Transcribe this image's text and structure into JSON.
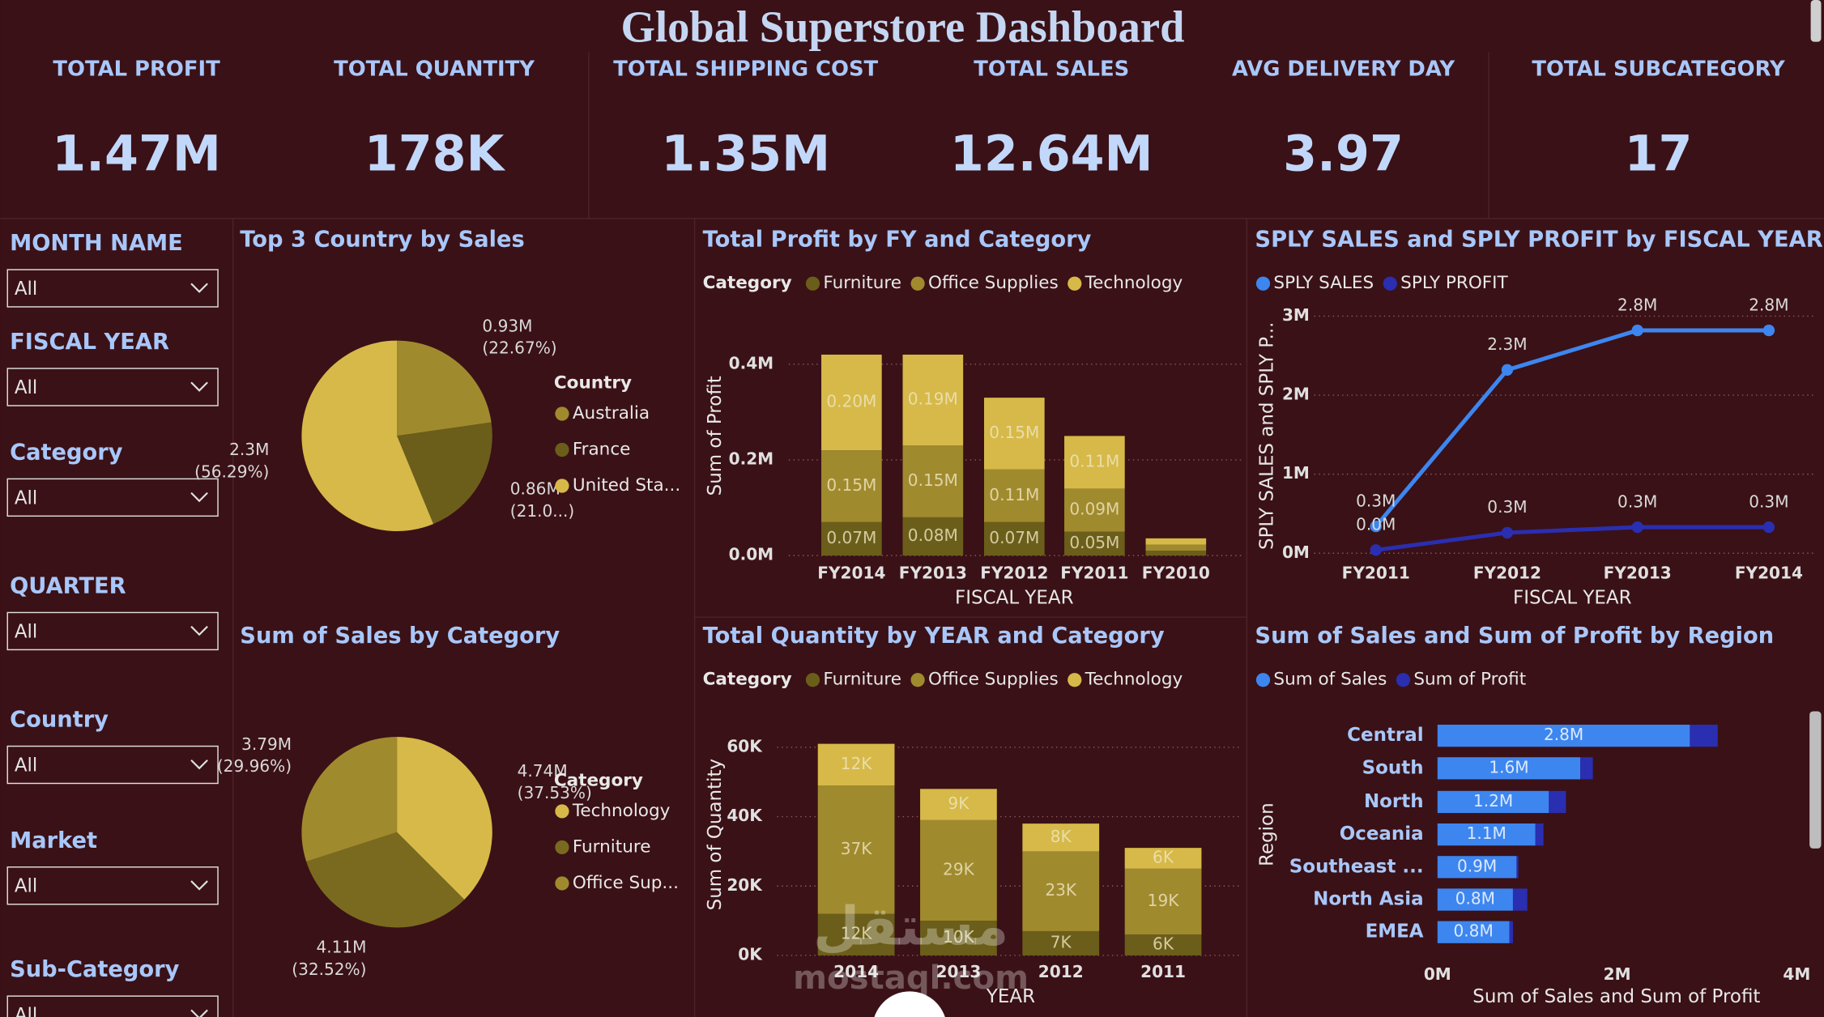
{
  "title": "Global Superstore Dashboard",
  "kpis": [
    {
      "label": "TOTAL PROFIT",
      "value": "1.47M"
    },
    {
      "label": "TOTAL QUANTITY",
      "value": "178K"
    },
    {
      "label": "TOTAL SHIPPING COST",
      "value": "1.35M"
    },
    {
      "label": "TOTAL SALES",
      "value": "12.64M"
    },
    {
      "label": "AVG DELIVERY DAY",
      "value": "3.97"
    },
    {
      "label": "TOTAL SUBCATEGORY",
      "value": "17"
    }
  ],
  "filters": [
    {
      "label": "MONTH NAME",
      "value": "All"
    },
    {
      "label": "FISCAL YEAR",
      "value": "All"
    },
    {
      "label": "Category",
      "value": "All"
    },
    {
      "label": "QUARTER",
      "value": "All"
    },
    {
      "label": "Country",
      "value": "All"
    },
    {
      "label": "Market",
      "value": "All"
    },
    {
      "label": "Sub-Category",
      "value": "All"
    }
  ],
  "chart_data": [
    {
      "type": "pie",
      "title": "Top 3 Country by Sales",
      "legend_title": "Country",
      "categories": [
        "Australia",
        "France",
        "United Sta..."
      ],
      "colors": [
        "#a08a2e",
        "#6b5e1a",
        "#d6b948"
      ],
      "values": [
        930000,
        860000,
        2300000
      ],
      "value_labels": [
        "0.93M",
        "0.86M",
        "2.3M"
      ],
      "percent_labels": [
        "(22.67%)",
        "(21.0...)",
        "(56.29%)"
      ]
    },
    {
      "type": "stacked_bar",
      "title": "Total Profit by FY and Category",
      "legend_title": "Category",
      "x_label": "FISCAL YEAR",
      "y_label": "Sum of Profit",
      "categories": [
        "FY2014",
        "FY2013",
        "FY2012",
        "FY2011",
        "FY2010"
      ],
      "series": [
        {
          "name": "Furniture",
          "color": "#6b5e1a",
          "values": [
            70000,
            80000,
            70000,
            50000,
            10000
          ],
          "value_labels": [
            "0.07M",
            "0.08M",
            "0.07M",
            "0.05M",
            null
          ]
        },
        {
          "name": "Office Supplies",
          "color": "#a08a2e",
          "values": [
            150000,
            150000,
            110000,
            90000,
            13000
          ],
          "value_labels": [
            "0.15M",
            "0.15M",
            "0.11M",
            "0.09M",
            null
          ]
        },
        {
          "name": "Technology",
          "color": "#d6b948",
          "values": [
            200000,
            190000,
            150000,
            110000,
            13000
          ],
          "value_labels": [
            "0.20M",
            "0.19M",
            "0.15M",
            "0.11M",
            null
          ]
        }
      ],
      "ylim": [
        0,
        430000
      ],
      "yticks": [
        {
          "value": 0,
          "label": "0.0M"
        },
        {
          "value": 200000,
          "label": "0.2M"
        },
        {
          "value": 400000,
          "label": "0.4M"
        }
      ],
      "grid": true
    },
    {
      "type": "line",
      "title": "SPLY SALES and SPLY PROFIT by FISCAL YEAR",
      "x_label": "FISCAL YEAR",
      "y_label": "SPLY SALES and SPLY P...",
      "categories": [
        "FY2011",
        "FY2012",
        "FY2013",
        "FY2014"
      ],
      "series": [
        {
          "name": "SPLY SALES",
          "color": "#3d86f0",
          "values": [
            340000,
            2320000,
            2820000,
            2820000
          ],
          "value_labels": [
            "0.3M",
            "2.3M",
            "2.8M",
            "2.8M"
          ]
        },
        {
          "name": "SPLY PROFIT",
          "color": "#2a2eb0",
          "values": [
            40000,
            260000,
            330000,
            330000
          ],
          "value_labels": [
            "0.0M",
            "0.3M",
            "0.3M",
            "0.3M"
          ]
        }
      ],
      "ylim": [
        0,
        3000000
      ],
      "yticks": [
        {
          "value": 0,
          "label": "0M"
        },
        {
          "value": 1000000,
          "label": "1M"
        },
        {
          "value": 2000000,
          "label": "2M"
        },
        {
          "value": 3000000,
          "label": "3M"
        }
      ],
      "grid": true
    },
    {
      "type": "pie",
      "title": "Sum of Sales by Category",
      "legend_title": "Category",
      "categories": [
        "Technology",
        "Furniture",
        "Office Sup..."
      ],
      "colors": [
        "#d6b948",
        "#7a6a1f",
        "#a08a2e"
      ],
      "values": [
        4740000,
        4110000,
        3790000
      ],
      "value_labels": [
        "4.74M",
        "4.11M",
        "3.79M"
      ],
      "percent_labels": [
        "(37.53%)",
        "(32.52%)",
        "(29.96%)"
      ]
    },
    {
      "type": "stacked_bar",
      "title": "Total Quantity by YEAR and Category",
      "legend_title": "Category",
      "x_label": "YEAR",
      "y_label": "Sum of Quantity",
      "categories": [
        "2014",
        "2013",
        "2012",
        "2011"
      ],
      "series": [
        {
          "name": "Furniture",
          "color": "#6b5e1a",
          "values": [
            12000,
            10000,
            7000,
            6000
          ],
          "value_labels": [
            "12K",
            "10K",
            "7K",
            "6K"
          ]
        },
        {
          "name": "Office Supplies",
          "color": "#a08a2e",
          "values": [
            37000,
            29000,
            23000,
            19000
          ],
          "value_labels": [
            "37K",
            "29K",
            "23K",
            "19K"
          ]
        },
        {
          "name": "Technology",
          "color": "#d6b948",
          "values": [
            12000,
            9000,
            8000,
            6000
          ],
          "value_labels": [
            "12K",
            "9K",
            "8K",
            "6K"
          ]
        }
      ],
      "ylim": [
        0,
        63000
      ],
      "yticks": [
        {
          "value": 0,
          "label": "0K"
        },
        {
          "value": 20000,
          "label": "20K"
        },
        {
          "value": 40000,
          "label": "40K"
        },
        {
          "value": 60000,
          "label": "60K"
        }
      ],
      "grid": true
    },
    {
      "type": "hbar",
      "title": "Sum of Sales and Sum of Profit by Region",
      "x_label": "Sum of Sales and Sum of Profit",
      "y_label": "Region",
      "categories": [
        "Central",
        "South",
        "North",
        "Oceania",
        "Southeast ...",
        "North Asia",
        "EMEA"
      ],
      "series": [
        {
          "name": "Sum of Sales",
          "color": "#3d86f0",
          "values": [
            2810000,
            1590000,
            1240000,
            1090000,
            880000,
            840000,
            800000
          ],
          "value_labels": [
            "2.8M",
            "1.6M",
            "1.2M",
            "1.1M",
            "0.9M",
            "0.8M",
            "0.8M"
          ]
        },
        {
          "name": "Sum of Profit",
          "color": "#2a2eb0",
          "values": [
            310000,
            140000,
            190000,
            90000,
            20000,
            160000,
            40000
          ]
        }
      ],
      "xlim": [
        0,
        4000000
      ],
      "xticks": [
        {
          "value": 0,
          "label": "0M"
        },
        {
          "value": 2000000,
          "label": "2M"
        },
        {
          "value": 4000000,
          "label": "4M"
        }
      ],
      "grid": false
    }
  ],
  "watermark": {
    "arabic": "مستقل",
    "latin": "mostaql.com"
  }
}
